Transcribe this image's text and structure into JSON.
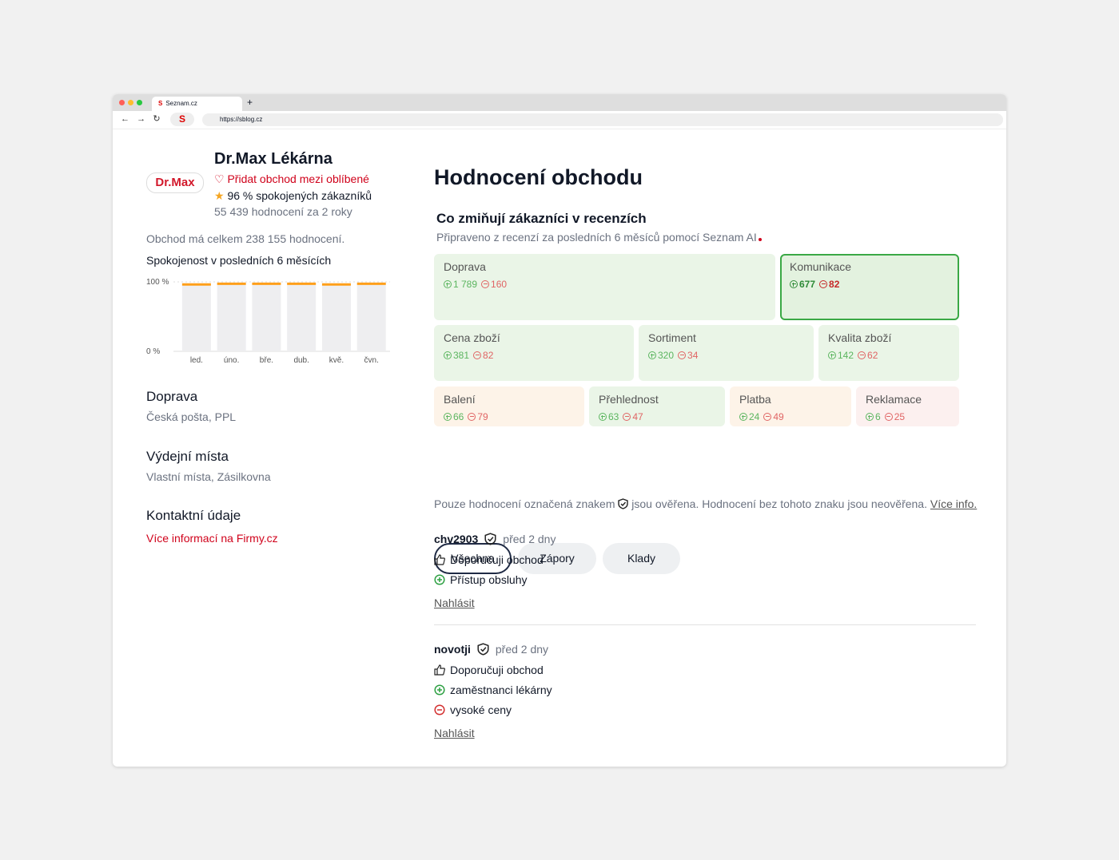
{
  "browser": {
    "tab_title": "Seznam.cz",
    "url": "https://sblog.cz"
  },
  "shop": {
    "logo": "Dr.Max",
    "name": "Dr.Max Lékárna",
    "favorite": "Přidat obchod mezi oblíbené",
    "satisfaction": "96 % spokojených zákazníků",
    "rating_count": "55 439 hodnocení za 2 roky",
    "total": "Obchod má celkem 238 155 hodnocení."
  },
  "chart_data": {
    "type": "bar",
    "title": "Spokojenost v posledních 6 měsících",
    "categories": [
      "led.",
      "úno.",
      "bře.",
      "dub.",
      "kvě.",
      "čvn."
    ],
    "values": [
      98,
      99,
      99,
      99,
      98,
      99
    ],
    "ylim": [
      0,
      100
    ],
    "yticks": [
      {
        "value": 0,
        "label": "0 %"
      },
      {
        "value": 100,
        "label": "100 %"
      }
    ],
    "color": "#ff9f1a",
    "grid": true
  },
  "info": [
    {
      "title": "Doprava",
      "text": "Česká pošta, PPL"
    },
    {
      "title": "Výdejní místa",
      "text": "Vlastní místa, Zásilkovna"
    },
    {
      "title": "Kontaktní údaje",
      "text": "Více informací na Firmy.cz"
    }
  ],
  "main": {
    "heading": "Hodnocení obchodu",
    "topics_title": "Co zmiňují zákazníci v recenzích",
    "topics_subtitle": "Připraveno z recenzí za posledních 6 měsíců pomocí Seznam AI",
    "topics": [
      {
        "name": "Doprava",
        "positive": "1 789",
        "negative": "160"
      },
      {
        "name": "Komunikace",
        "positive": "677",
        "negative": "82"
      },
      {
        "name": "Cena zboží",
        "positive": "381",
        "negative": "82"
      },
      {
        "name": "Sortiment",
        "positive": "320",
        "negative": "34"
      },
      {
        "name": "Kvalita zboží",
        "positive": "142",
        "negative": "62"
      },
      {
        "name": "Balení",
        "positive": "66",
        "negative": "79"
      },
      {
        "name": "Přehlednost",
        "positive": "63",
        "negative": "47"
      },
      {
        "name": "Platba",
        "positive": "24",
        "negative": "49"
      },
      {
        "name": "Reklamace",
        "positive": "6",
        "negative": "25"
      }
    ],
    "filters": [
      "Všechna",
      "Zápory",
      "Klady"
    ],
    "notice": {
      "before": "Pouze hodnocení označená znakem",
      "after": "jsou ověřena. Hodnocení bez tohoto znaku jsou neověřena.",
      "link": "Více info."
    },
    "reviews": [
      {
        "user": "chv2903",
        "time": "před 2 dny",
        "recommend": "Doporučuji obchod",
        "pros": [
          "Přístup obsluhy"
        ],
        "cons": [],
        "report": "Nahlásit"
      },
      {
        "user": "novotji",
        "time": "před 2 dny",
        "recommend": "Doporučuji obchod",
        "pros": [
          "zaměstnanci lékárny"
        ],
        "cons": [
          "vysoké ceny"
        ],
        "report": "Nahlásit"
      }
    ]
  }
}
